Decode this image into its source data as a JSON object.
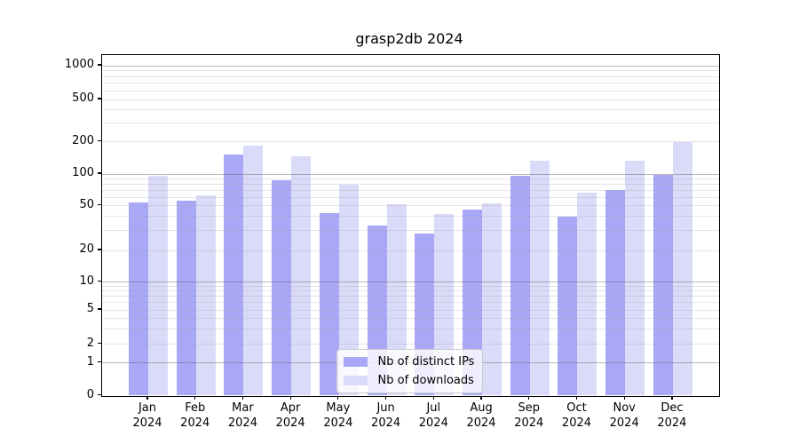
{
  "chart_data": {
    "type": "bar",
    "title": "grasp2db 2024",
    "categories": [
      "Jan 2024",
      "Feb 2024",
      "Mar 2024",
      "Apr 2024",
      "May 2024",
      "Jun 2024",
      "Jul 2024",
      "Aug 2024",
      "Sep 2024",
      "Oct 2024",
      "Nov 2024",
      "Dec 2024"
    ],
    "series": [
      {
        "name": "Nb of distinct IPs",
        "color": "#a8a8f6",
        "values": [
          54,
          56,
          151,
          88,
          43,
          33,
          28,
          46,
          96,
          40,
          70,
          98
        ]
      },
      {
        "name": "Nb of downloads",
        "color": "#dadaf9",
        "values": [
          96,
          63,
          185,
          146,
          79,
          51,
          42,
          53,
          133,
          66,
          132,
          197
        ]
      }
    ],
    "xlabel": "",
    "ylabel": "",
    "yaxis": {
      "scale": "symlog",
      "ticks": [
        0,
        1,
        2,
        5,
        10,
        20,
        50,
        100,
        200,
        500,
        1000
      ],
      "top": 1000
    },
    "grid": "major and minor log gridlines, drawn over bars",
    "legend": {
      "position": "inside bottom-center",
      "entries": [
        "Nb of distinct IPs",
        "Nb of downloads"
      ]
    }
  }
}
